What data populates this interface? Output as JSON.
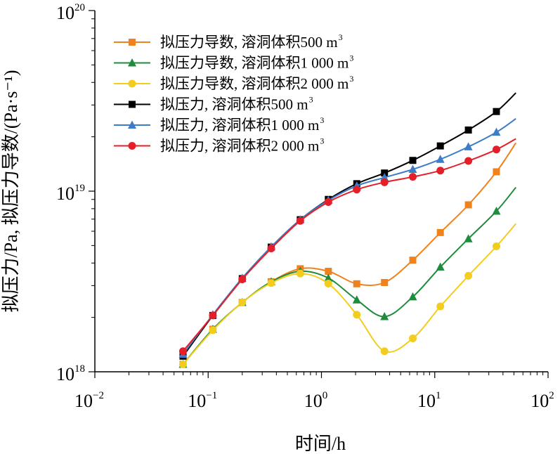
{
  "chart_data": {
    "type": "line",
    "xscale": "log",
    "yscale": "log",
    "xlabel": "时间/h",
    "ylabel": "拟压力/Pa, 拟压力导数/(Pa·s⁻¹)",
    "xlim": [
      0.01,
      100
    ],
    "ylim": [
      1e+18,
      1e+20
    ],
    "x_ticks": [
      {
        "value": 0.01,
        "base": "10",
        "exp": "−2"
      },
      {
        "value": 0.1,
        "base": "10",
        "exp": "−1"
      },
      {
        "value": 1,
        "base": "10",
        "exp": "0"
      },
      {
        "value": 10,
        "base": "10",
        "exp": "1"
      },
      {
        "value": 100,
        "base": "10",
        "exp": "2"
      }
    ],
    "y_ticks": [
      {
        "value": 1e+18,
        "base": "10",
        "exp": "18"
      },
      {
        "value": 1e+19,
        "base": "10",
        "exp": "19"
      },
      {
        "value": 1e+20,
        "base": "10",
        "exp": "20"
      }
    ],
    "legend_position": "top-left",
    "series": [
      {
        "name": "拟压力导数, 溶洞体积500 m",
        "sup": "3",
        "color": "#F0821E",
        "marker": "square",
        "points": [
          [
            0.06,
            1.1e+18
          ],
          [
            0.11,
            1.72e+18
          ],
          [
            0.2,
            2.42e+18
          ],
          [
            0.36,
            3.15e+18
          ],
          [
            0.65,
            3.72e+18
          ],
          [
            1.15,
            3.6e+18
          ],
          [
            2.05,
            3.07e+18
          ],
          [
            3.6,
            3.12e+18
          ],
          [
            6.4,
            4.15e+18
          ],
          [
            11.2,
            5.9e+18
          ],
          [
            19.8,
            8.4e+18
          ],
          [
            35,
            1.28e+19
          ],
          [
            52,
            1.85e+19
          ]
        ]
      },
      {
        "name": "拟压力导数, 溶洞体积1 000 m",
        "sup": "3",
        "color": "#1E8C3C",
        "marker": "triangle",
        "points": [
          [
            0.06,
            1.1e+18
          ],
          [
            0.11,
            1.72e+18
          ],
          [
            0.2,
            2.42e+18
          ],
          [
            0.36,
            3.15e+18
          ],
          [
            0.65,
            3.6e+18
          ],
          [
            1.15,
            3.3e+18
          ],
          [
            2.05,
            2.5e+18
          ],
          [
            3.6,
            2.02e+18
          ],
          [
            6.4,
            2.6e+18
          ],
          [
            11.2,
            3.8e+18
          ],
          [
            19.8,
            5.45e+18
          ],
          [
            35,
            7.75e+18
          ],
          [
            52,
            1.05e+19
          ]
        ]
      },
      {
        "name": "拟压力导数, 溶洞体积2 000 m",
        "sup": "3",
        "color": "#F2CD1E",
        "marker": "circle",
        "points": [
          [
            0.06,
            1.1e+18
          ],
          [
            0.11,
            1.7e+18
          ],
          [
            0.2,
            2.42e+18
          ],
          [
            0.36,
            3.1e+18
          ],
          [
            0.65,
            3.5e+18
          ],
          [
            1.15,
            3.08e+18
          ],
          [
            2.05,
            2.07e+18
          ],
          [
            3.6,
            1.3e+18
          ],
          [
            6.4,
            1.53e+18
          ],
          [
            11.2,
            2.3e+18
          ],
          [
            19.8,
            3.4e+18
          ],
          [
            35,
            4.95e+18
          ],
          [
            52,
            6.6e+18
          ]
        ]
      },
      {
        "name": "拟压力, 溶洞体积500 m",
        "sup": "3",
        "color": "#000000",
        "marker": "square",
        "points": [
          [
            0.06,
            1.22e+18
          ],
          [
            0.11,
            2.05e+18
          ],
          [
            0.2,
            3.28e+18
          ],
          [
            0.36,
            4.9e+18
          ],
          [
            0.65,
            6.95e+18
          ],
          [
            1.15,
            9e+18
          ],
          [
            2.05,
            1.1e+19
          ],
          [
            3.6,
            1.26e+19
          ],
          [
            6.4,
            1.48e+19
          ],
          [
            11.2,
            1.78e+19
          ],
          [
            19.8,
            2.18e+19
          ],
          [
            35,
            2.76e+19
          ],
          [
            52,
            3.5e+19
          ]
        ]
      },
      {
        "name": "拟压力, 溶洞体积1 000 m",
        "sup": "3",
        "color": "#3C7DC8",
        "marker": "triangle",
        "points": [
          [
            0.06,
            1.25e+18
          ],
          [
            0.11,
            2.07e+18
          ],
          [
            0.2,
            3.3e+18
          ],
          [
            0.36,
            4.92e+18
          ],
          [
            0.65,
            6.95e+18
          ],
          [
            1.15,
            8.9e+18
          ],
          [
            2.05,
            1.07e+19
          ],
          [
            3.6,
            1.19e+19
          ],
          [
            6.4,
            1.32e+19
          ],
          [
            11.2,
            1.5e+19
          ],
          [
            19.8,
            1.76e+19
          ],
          [
            35,
            2.12e+19
          ],
          [
            52,
            2.52e+19
          ]
        ]
      },
      {
        "name": "拟压力, 溶洞体积2 000 m",
        "sup": "3",
        "color": "#E61E28",
        "marker": "circle",
        "points": [
          [
            0.06,
            1.3e+18
          ],
          [
            0.11,
            2.05e+18
          ],
          [
            0.2,
            3.25e+18
          ],
          [
            0.36,
            4.82e+18
          ],
          [
            0.65,
            6.85e+18
          ],
          [
            1.15,
            8.7e+18
          ],
          [
            2.05,
            1.02e+19
          ],
          [
            3.6,
            1.12e+19
          ],
          [
            6.4,
            1.2e+19
          ],
          [
            11.2,
            1.3e+19
          ],
          [
            19.8,
            1.47e+19
          ],
          [
            35,
            1.7e+19
          ],
          [
            52,
            1.95e+19
          ]
        ]
      }
    ]
  }
}
